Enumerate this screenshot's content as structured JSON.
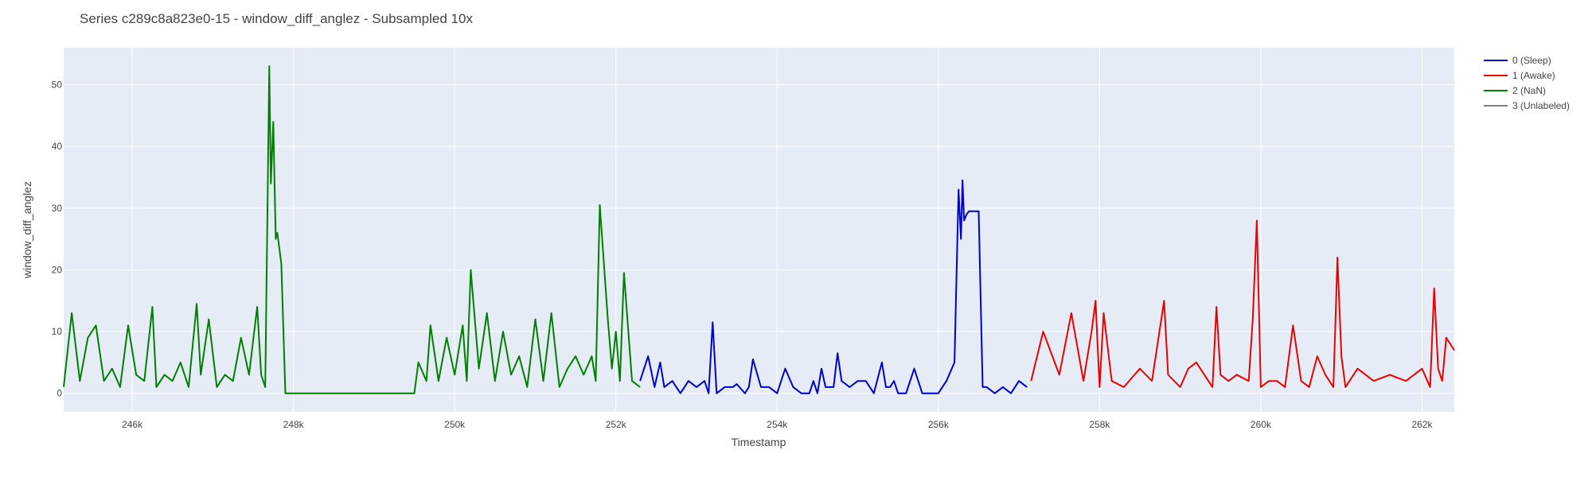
{
  "chart_data": {
    "type": "line",
    "title": "Series c289c8a823e0-15 - window_diff_anglez - Subsampled 10x",
    "xlabel": "Timestamp",
    "ylabel": "window_diff_anglez",
    "xlim": [
      245150,
      262400
    ],
    "ylim": [
      -3,
      56
    ],
    "x_ticks": [
      246000,
      248000,
      250000,
      252000,
      254000,
      256000,
      258000,
      260000,
      262000
    ],
    "x_tick_labels": [
      "246k",
      "248k",
      "250k",
      "252k",
      "254k",
      "256k",
      "258k",
      "260k",
      "262k"
    ],
    "y_ticks": [
      0,
      10,
      20,
      30,
      40,
      50
    ],
    "y_tick_labels": [
      "0",
      "10",
      "20",
      "30",
      "40",
      "50"
    ],
    "grid": true,
    "legend_position": "right",
    "colors": {
      "plot_bg": "#e5ecf6",
      "grid": "#ffffff"
    },
    "series": [
      {
        "name": "0 (Sleep)",
        "color": "#0000cc",
        "x": [
          252300,
          252400,
          252480,
          252550,
          252600,
          252700,
          252800,
          252900,
          253000,
          253100,
          253150,
          253200,
          253250,
          253350,
          253450,
          253500,
          253600,
          253650,
          253700,
          253800,
          253900,
          254000,
          254100,
          254200,
          254300,
          254400,
          254450,
          254500,
          254550,
          254600,
          254700,
          254750,
          254800,
          254900,
          255000,
          255100,
          255200,
          255300,
          255350,
          255400,
          255450,
          255500,
          255600,
          255700,
          255800,
          255900,
          256000,
          256100,
          256200,
          256250,
          256280,
          256300,
          256320,
          256350,
          256380,
          256400,
          256450,
          256500,
          256550,
          256600,
          256700,
          256800,
          256900,
          257000,
          257100
        ],
        "y": [
          2,
          6,
          1,
          5,
          1,
          2,
          0,
          2,
          1,
          2,
          0,
          11.5,
          0,
          1,
          1,
          1.5,
          0,
          1,
          5.5,
          1,
          1,
          0,
          4,
          1,
          0,
          0,
          2,
          0,
          4,
          1,
          1,
          6.5,
          2,
          1,
          2,
          2,
          0,
          5,
          1,
          1,
          2,
          0,
          0,
          4,
          0,
          0,
          0,
          2,
          5,
          33,
          25,
          34.5,
          28,
          29,
          29.5,
          29.5,
          29.5,
          29.5,
          1,
          1,
          0,
          1,
          0,
          2,
          1
        ]
      },
      {
        "name": "1 (Awake)",
        "color": "#ee0000",
        "x": [
          257150,
          257300,
          257500,
          257650,
          257800,
          257900,
          257950,
          258000,
          258050,
          258150,
          258300,
          258500,
          258650,
          258800,
          258850,
          259000,
          259100,
          259200,
          259300,
          259400,
          259450,
          259500,
          259600,
          259700,
          259850,
          259900,
          259950,
          260000,
          260100,
          260200,
          260300,
          260400,
          260500,
          260600,
          260700,
          260800,
          260900,
          260950,
          261000,
          261050,
          261200,
          261400,
          261600,
          261800,
          262000,
          262100,
          262150,
          262200,
          262250,
          262300,
          262400
        ],
        "y": [
          2,
          10,
          3,
          13,
          2,
          10,
          15,
          1,
          13,
          2,
          1,
          4,
          2,
          15,
          3,
          1,
          4,
          5,
          3,
          1,
          14,
          3,
          2,
          3,
          2,
          12,
          28,
          1,
          2,
          2,
          1,
          11,
          2,
          1,
          6,
          3,
          1,
          22,
          6,
          1,
          4,
          2,
          3,
          2,
          4,
          1,
          17,
          4,
          2,
          9,
          7
        ]
      },
      {
        "name": "2 (NaN)",
        "color": "#008000",
        "x": [
          245150,
          245250,
          245350,
          245450,
          245550,
          245650,
          245750,
          245850,
          245950,
          246050,
          246150,
          246250,
          246300,
          246400,
          246500,
          246600,
          246700,
          246800,
          246850,
          246950,
          247050,
          247150,
          247250,
          247350,
          247450,
          247550,
          247600,
          247650,
          247700,
          247720,
          247750,
          247780,
          247800,
          247850,
          247900,
          247920,
          247950,
          249500,
          249550,
          249650,
          249700,
          249800,
          249900,
          250000,
          250100,
          250150,
          250200,
          250300,
          250400,
          250500,
          250600,
          250700,
          250800,
          250900,
          251000,
          251100,
          251200,
          251300,
          251400,
          251500,
          251600,
          251700,
          251750,
          251800,
          251900,
          251950,
          252000,
          252050,
          252100,
          252200,
          252300
        ],
        "y": [
          1,
          13,
          2,
          9,
          11,
          2,
          4,
          1,
          11,
          3,
          2,
          14,
          1,
          3,
          2,
          5,
          1,
          14.5,
          3,
          12,
          1,
          3,
          2,
          9,
          3,
          14,
          3,
          1,
          53,
          34,
          44,
          25,
          26,
          21,
          0,
          0,
          0,
          0,
          5,
          2,
          11,
          2,
          9,
          3,
          11,
          2,
          20,
          4,
          13,
          2,
          10,
          3,
          6,
          1,
          12,
          2,
          13,
          1,
          4,
          6,
          3,
          6,
          2,
          30.5,
          12,
          4,
          10,
          2,
          19.5,
          2,
          1
        ]
      },
      {
        "name": "3 (Unlabeled)",
        "color": "#808080",
        "x": [],
        "y": []
      }
    ]
  }
}
